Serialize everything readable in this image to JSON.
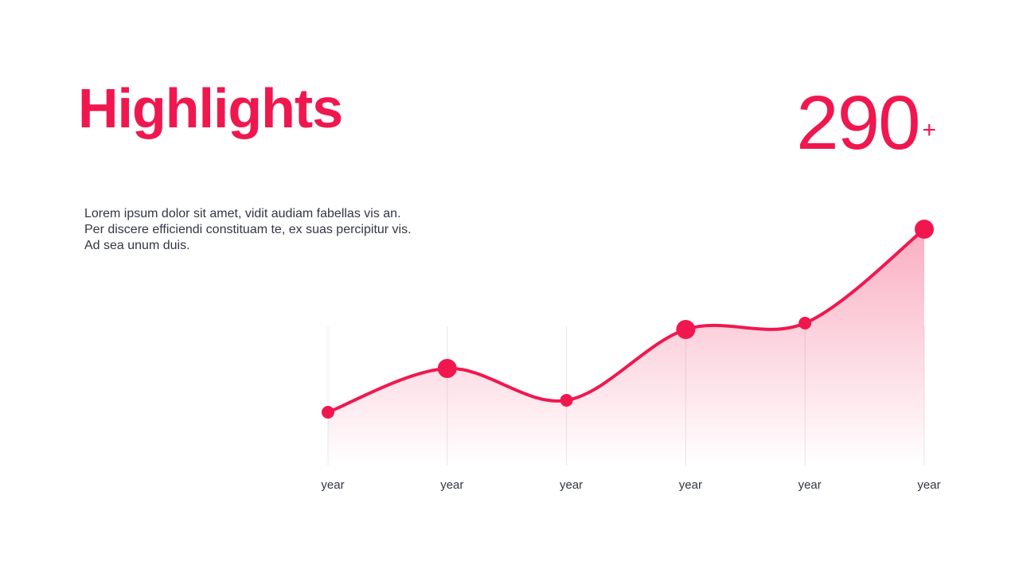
{
  "header": {
    "title": "Highlights"
  },
  "stat": {
    "value": "290",
    "suffix": "+"
  },
  "body": {
    "text": "Lorem ipsum dolor sit amet, vidit audiam fabellas vis an. Per discere efficiendi constituam te, ex suas percipitur vis. Ad sea unum duis."
  },
  "chart_data": {
    "type": "line",
    "categories": [
      "year",
      "year",
      "year",
      "year",
      "year",
      "year"
    ],
    "values": [
      67,
      122,
      82,
      171,
      179,
      297
    ],
    "color": "#f0174f",
    "ylim": [
      0,
      300
    ],
    "area": true
  }
}
